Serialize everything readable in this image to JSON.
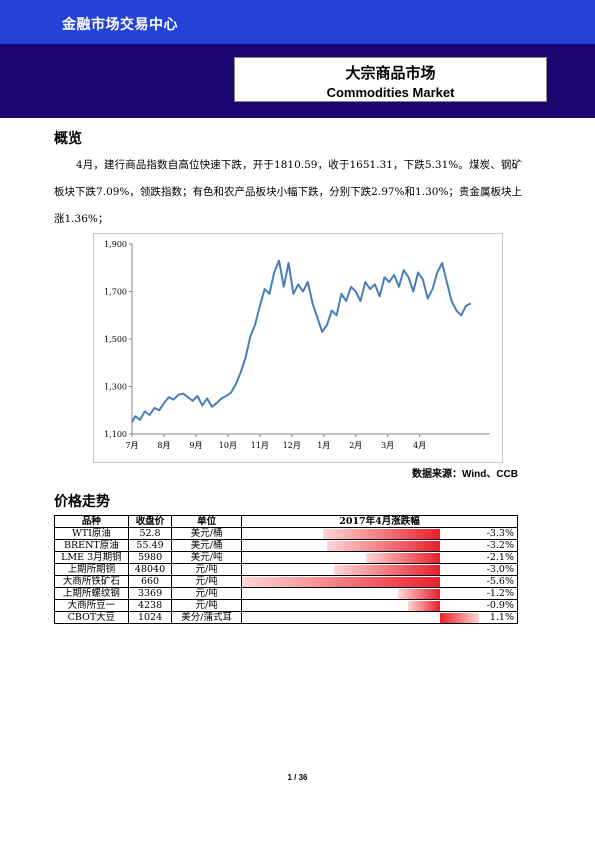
{
  "header": {
    "org": "金融市场交易中心",
    "title_cn": "大宗商品市场",
    "title_en": "Commodities Market"
  },
  "overview": {
    "heading": "概览",
    "text": "4月，建行商品指数自高位快速下跌，开于1810.59，收于1651.31，下跌5.31%。煤炭、钢矿板块下跌7.09%，领跌指数；有色和农产品板块小幅下跌，分别下跌2.97%和1.30%；贵金属板块上涨1.36%；"
  },
  "chart_data": {
    "type": "line",
    "title": "",
    "xlabel": "",
    "ylabel": "",
    "ylim": [
      1100,
      1900
    ],
    "yticks": [
      "1,100",
      "1,300",
      "1,500",
      "1,700",
      "1,900"
    ],
    "xticks": [
      "7月",
      "8月",
      "9月",
      "10月",
      "11月",
      "12月",
      "1月",
      "2月",
      "3月",
      "4月"
    ],
    "xrange": [
      0,
      11.2
    ],
    "color": "#4a7ebb",
    "series": [
      {
        "name": "",
        "x": [
          0,
          0.1,
          0.25,
          0.4,
          0.55,
          0.7,
          0.85,
          1.0,
          1.15,
          1.3,
          1.45,
          1.6,
          1.75,
          1.9,
          2.05,
          2.2,
          2.35,
          2.5,
          2.65,
          2.8,
          2.95,
          3.1,
          3.25,
          3.4,
          3.55,
          3.7,
          3.85,
          4.0,
          4.15,
          4.3,
          4.45,
          4.6,
          4.75,
          4.9,
          5.05,
          5.2,
          5.35,
          5.5,
          5.65,
          5.8,
          5.95,
          6.1,
          6.25,
          6.4,
          6.55,
          6.7,
          6.85,
          7.0,
          7.15,
          7.3,
          7.45,
          7.6,
          7.75,
          7.9,
          8.05,
          8.2,
          8.35,
          8.5,
          8.65,
          8.8,
          8.95,
          9.1,
          9.25,
          9.4,
          9.55,
          9.7,
          9.85,
          10.0,
          10.15,
          10.3,
          10.45,
          10.6
        ],
        "values": [
          1150,
          1175,
          1160,
          1195,
          1180,
          1210,
          1200,
          1230,
          1255,
          1245,
          1265,
          1270,
          1255,
          1240,
          1260,
          1220,
          1250,
          1215,
          1230,
          1250,
          1260,
          1275,
          1310,
          1360,
          1420,
          1510,
          1560,
          1640,
          1710,
          1690,
          1780,
          1830,
          1720,
          1820,
          1690,
          1730,
          1700,
          1740,
          1650,
          1590,
          1530,
          1560,
          1620,
          1600,
          1690,
          1660,
          1720,
          1700,
          1660,
          1740,
          1710,
          1730,
          1680,
          1760,
          1740,
          1770,
          1720,
          1790,
          1760,
          1700,
          1780,
          1750,
          1670,
          1710,
          1780,
          1820,
          1740,
          1660,
          1620,
          1600,
          1640,
          1650
        ]
      }
    ]
  },
  "source": "数据来源：Wind、CCB",
  "prices": {
    "heading": "价格走势",
    "columns": [
      "品种",
      "收盘价",
      "单位",
      "2017年4月涨跌幅"
    ],
    "rows": [
      {
        "name": "WTI原油",
        "close": "52.8",
        "unit": "美元/桶",
        "change": "-3.3%",
        "pct": -3.3
      },
      {
        "name": "BRENT原油",
        "close": "55.49",
        "unit": "美元/桶",
        "change": "-3.2%",
        "pct": -3.2
      },
      {
        "name": "LME 3月期铜",
        "close": "5980",
        "unit": "美元/吨",
        "change": "-2.1%",
        "pct": -2.1
      },
      {
        "name": "上期所期铜",
        "close": "48040",
        "unit": "元/吨",
        "change": "-3.0%",
        "pct": -3.0
      },
      {
        "name": "大商所铁矿石",
        "close": "660",
        "unit": "元/吨",
        "change": "-5.6%",
        "pct": -5.6
      },
      {
        "name": "上期所螺纹钢",
        "close": "3369",
        "unit": "元/吨",
        "change": "-1.2%",
        "pct": -1.2
      },
      {
        "name": "大商所豆一",
        "close": "4238",
        "unit": "元/吨",
        "change": "-0.9%",
        "pct": -0.9
      },
      {
        "name": "CBOT大豆",
        "close": "1024",
        "unit": "美分/蒲式耳",
        "change": "1.1%",
        "pct": 1.1
      }
    ]
  },
  "footer": {
    "page": "1 / 36"
  }
}
